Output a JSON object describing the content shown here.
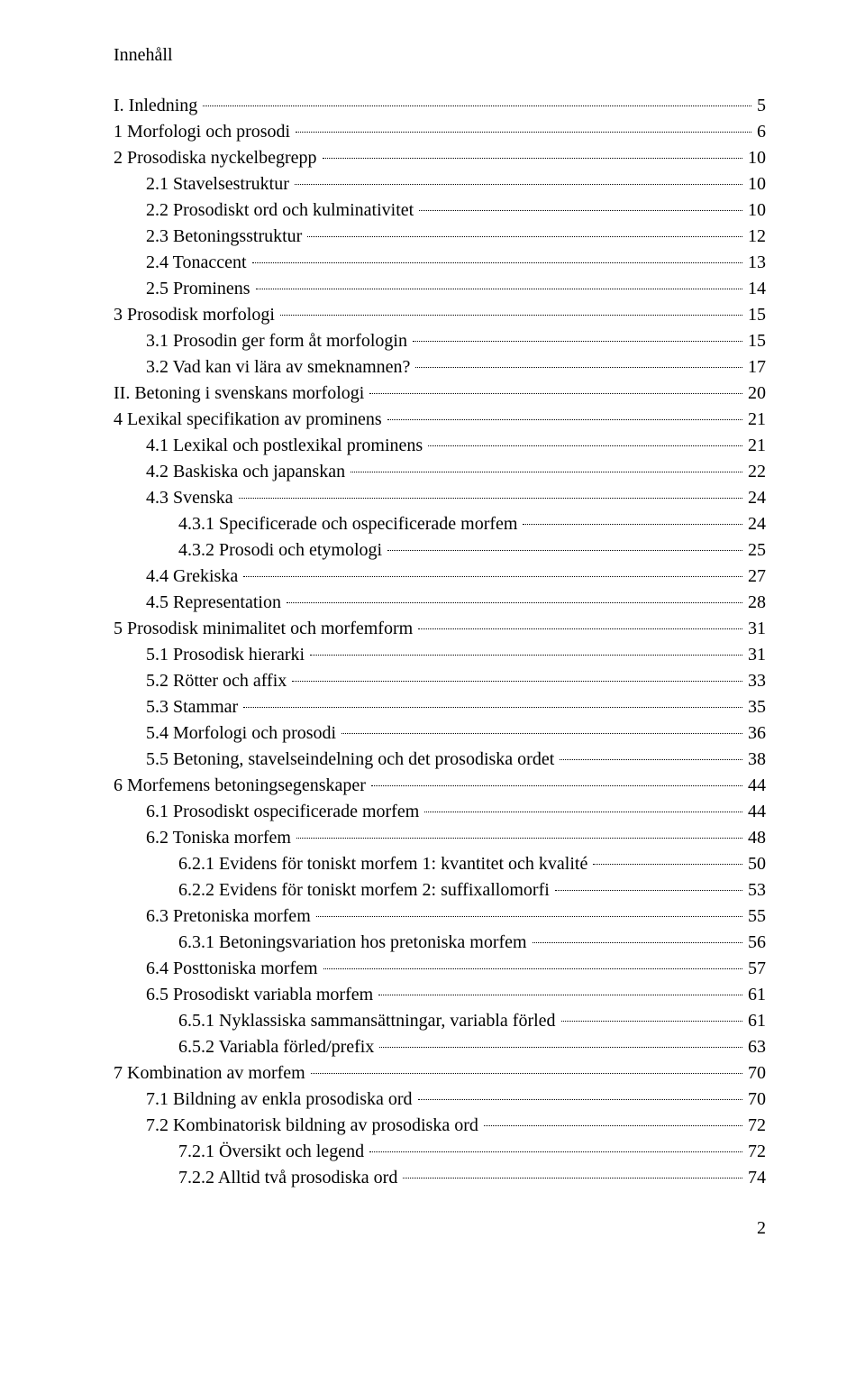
{
  "title": "Innehåll",
  "page_number": "2",
  "entries": [
    {
      "level": 0,
      "label": "I. Inledning",
      "page": "5"
    },
    {
      "level": 1,
      "label": "1   Morfologi och prosodi",
      "page": "6"
    },
    {
      "level": 1,
      "label": "2   Prosodiska nyckelbegrepp",
      "page": "10"
    },
    {
      "level": 2,
      "label": "2.1   Stavelsestruktur",
      "page": "10"
    },
    {
      "level": 2,
      "label": "2.2   Prosodiskt ord och kulminativitet",
      "page": "10"
    },
    {
      "level": 2,
      "label": "2.3   Betoningsstruktur",
      "page": "12"
    },
    {
      "level": 2,
      "label": "2.4   Tonaccent",
      "page": "13"
    },
    {
      "level": 2,
      "label": "2.5   Prominens",
      "page": "14"
    },
    {
      "level": 1,
      "label": "3   Prosodisk morfologi",
      "page": "15"
    },
    {
      "level": 2,
      "label": "3.1   Prosodin ger form åt morfologin",
      "page": "15"
    },
    {
      "level": 2,
      "label": "3.2   Vad kan vi lära av smeknamnen?",
      "page": "17"
    },
    {
      "level": 0,
      "label": "II. Betoning i svenskans morfologi",
      "page": "20"
    },
    {
      "level": 1,
      "label": "4   Lexikal specifikation av prominens",
      "page": "21"
    },
    {
      "level": 2,
      "label": "4.1   Lexikal och postlexikal prominens",
      "page": "21"
    },
    {
      "level": 2,
      "label": "4.2   Baskiska och japanskan",
      "page": "22"
    },
    {
      "level": 2,
      "label": "4.3   Svenska",
      "page": "24"
    },
    {
      "level": 3,
      "label": "4.3.1   Specificerade och ospecificerade morfem",
      "page": "24"
    },
    {
      "level": 3,
      "label": "4.3.2   Prosodi och etymologi",
      "page": "25"
    },
    {
      "level": 2,
      "label": "4.4   Grekiska",
      "page": "27"
    },
    {
      "level": 2,
      "label": "4.5   Representation",
      "page": "28"
    },
    {
      "level": 1,
      "label": "5   Prosodisk minimalitet och morfemform",
      "page": "31"
    },
    {
      "level": 2,
      "label": "5.1   Prosodisk hierarki",
      "page": "31"
    },
    {
      "level": 2,
      "label": "5.2   Rötter och affix",
      "page": "33"
    },
    {
      "level": 2,
      "label": "5.3   Stammar",
      "page": "35"
    },
    {
      "level": 2,
      "label": "5.4   Morfologi och prosodi",
      "page": "36"
    },
    {
      "level": 2,
      "label": "5.5   Betoning, stavelseindelning och det prosodiska ordet",
      "page": "38"
    },
    {
      "level": 1,
      "label": "6   Morfemens betoningsegenskaper",
      "page": "44"
    },
    {
      "level": 2,
      "label": "6.1   Prosodiskt ospecificerade morfem",
      "page": "44"
    },
    {
      "level": 2,
      "label": "6.2   Toniska morfem",
      "page": "48"
    },
    {
      "level": 3,
      "label": "6.2.1   Evidens för toniskt morfem 1: kvantitet och kvalité",
      "page": "50"
    },
    {
      "level": 3,
      "label": "6.2.2   Evidens för toniskt morfem 2: suffixallomorfi",
      "page": "53"
    },
    {
      "level": 2,
      "label": "6.3   Pretoniska morfem",
      "page": "55"
    },
    {
      "level": 3,
      "label": "6.3.1   Betoningsvariation hos pretoniska morfem",
      "page": "56"
    },
    {
      "level": 2,
      "label": "6.4   Posttoniska morfem",
      "page": "57"
    },
    {
      "level": 2,
      "label": "6.5   Prosodiskt variabla morfem",
      "page": "61"
    },
    {
      "level": 3,
      "label": "6.5.1   Nyklassiska sammansättningar, variabla förled",
      "page": "61"
    },
    {
      "level": 3,
      "label": "6.5.2   Variabla förled/prefix",
      "page": "63"
    },
    {
      "level": 1,
      "label": "7   Kombination av morfem",
      "page": "70"
    },
    {
      "level": 2,
      "label": "7.1   Bildning av enkla prosodiska ord",
      "page": "70"
    },
    {
      "level": 2,
      "label": "7.2   Kombinatorisk bildning av prosodiska ord",
      "page": "72"
    },
    {
      "level": 3,
      "label": "7.2.1   Översikt och legend",
      "page": "72"
    },
    {
      "level": 3,
      "label": "7.2.2   Alltid två prosodiska ord",
      "page": "74"
    }
  ]
}
